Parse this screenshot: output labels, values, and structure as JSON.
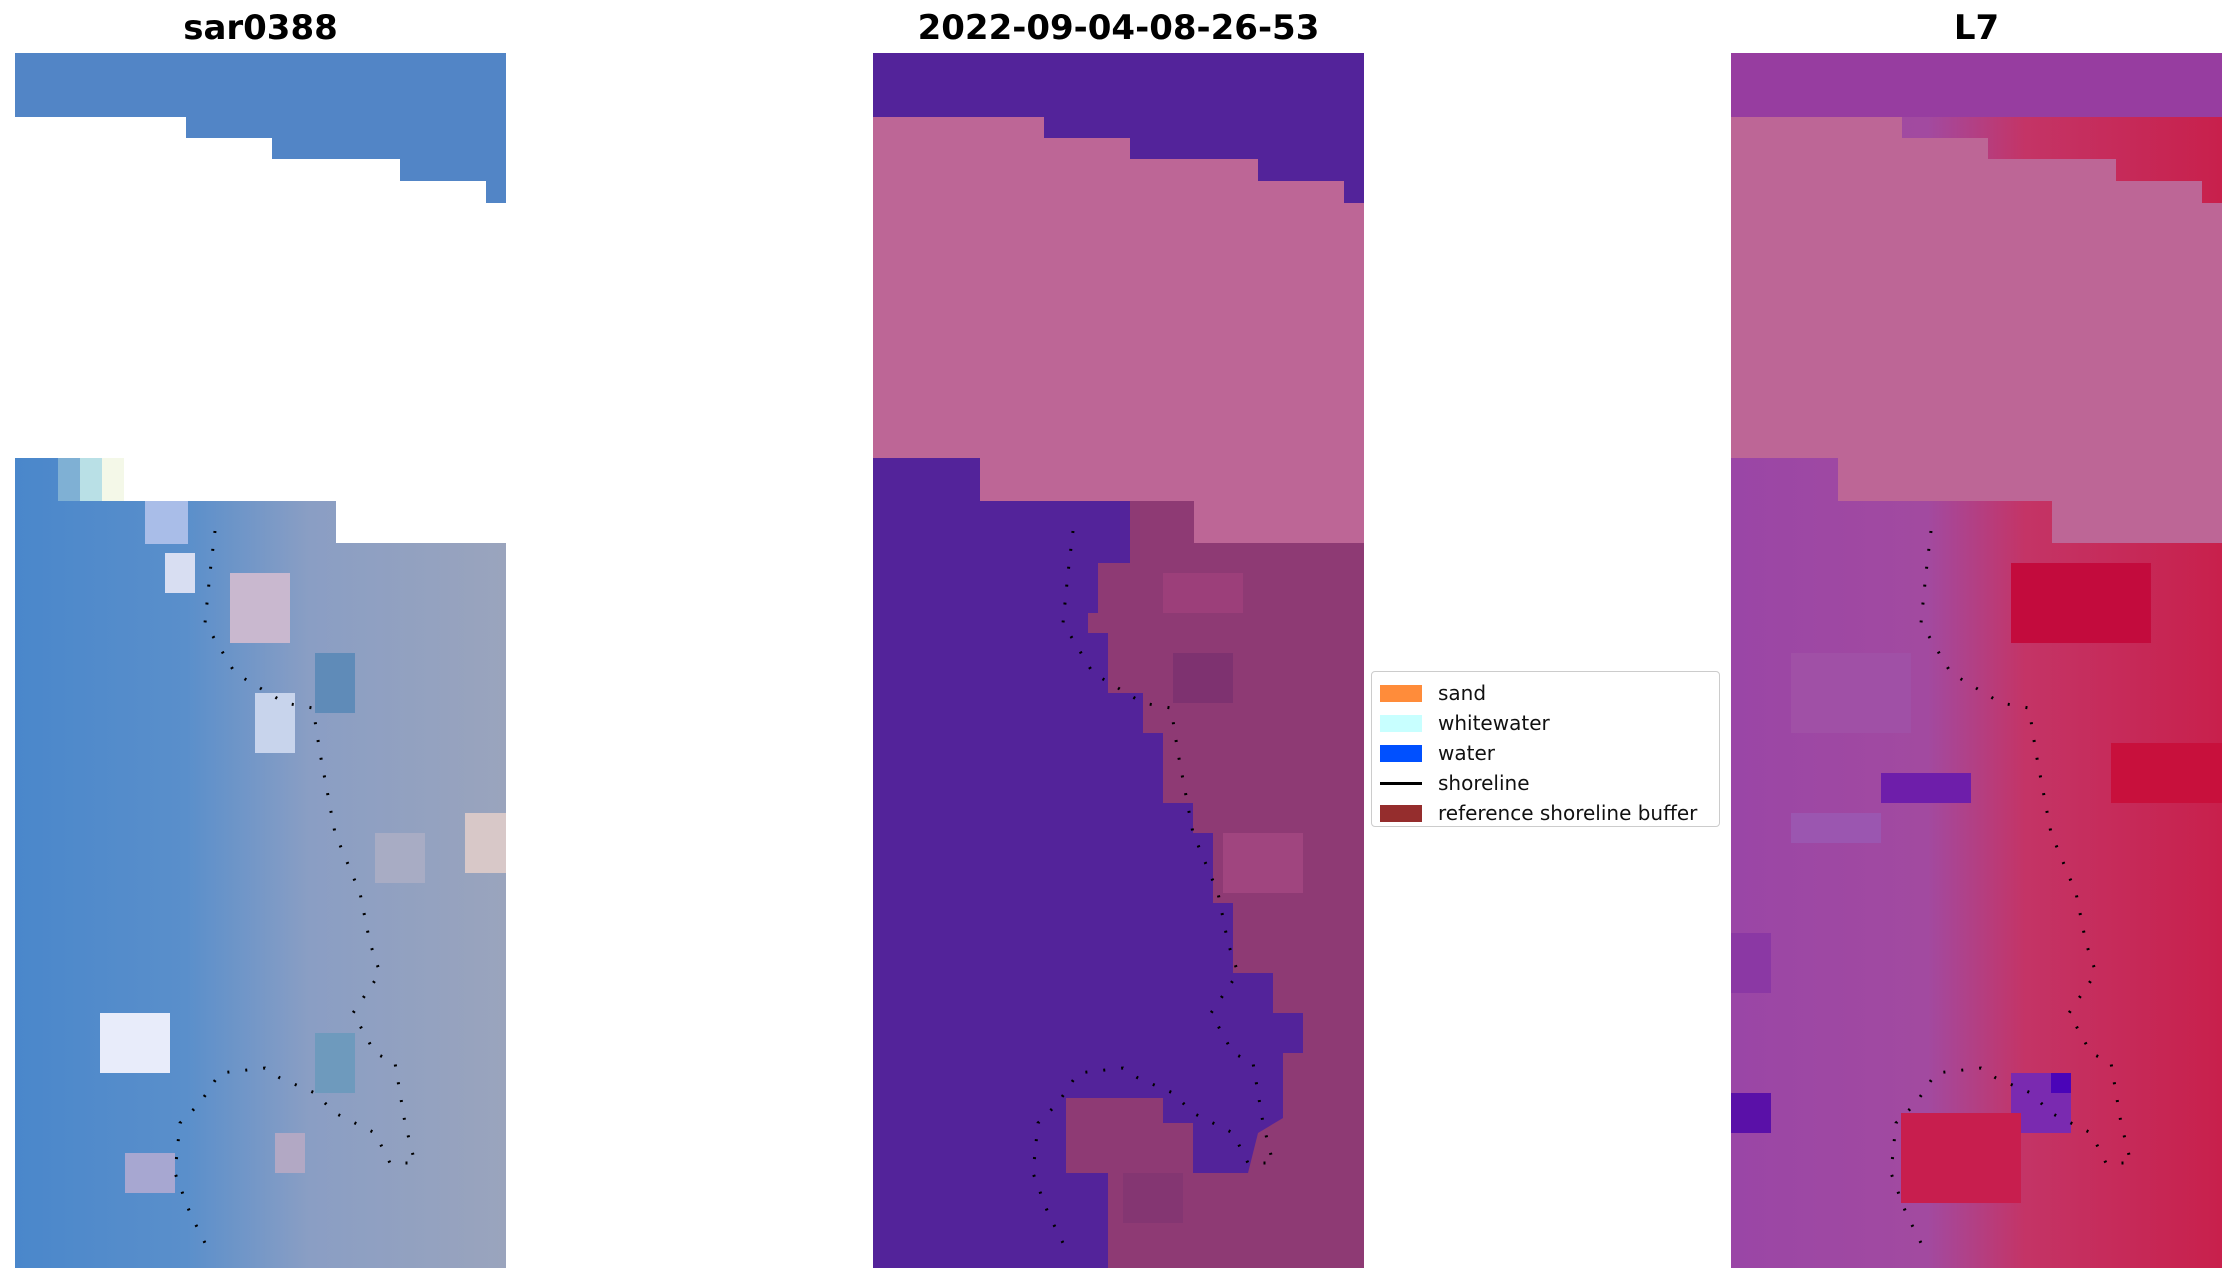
{
  "panels": [
    {
      "id": "rgb",
      "title": "sar0388"
    },
    {
      "id": "classified",
      "title": "2022-09-04-08-26-53"
    },
    {
      "id": "index",
      "title": "L7"
    }
  ],
  "legend": {
    "items": [
      {
        "label": "sand",
        "color": "#ff8c3a",
        "kind": "patch"
      },
      {
        "label": "whitewater",
        "color": "#c8ffff",
        "kind": "patch"
      },
      {
        "label": "water",
        "color": "#0050ff",
        "kind": "patch"
      },
      {
        "label": "shoreline",
        "color": "#000000",
        "kind": "line"
      },
      {
        "label": "reference shoreline buffer",
        "color": "#952d2d",
        "kind": "patch"
      }
    ]
  },
  "colors": {
    "nodata_pink": "#bd6696",
    "water_purple": "#53239a",
    "sand_mauve": "#8e3a74",
    "rgb_blue": "#4a85c9",
    "rgb_land": "#8e9bb8",
    "index_land": "#c2305a",
    "index_water": "#9a4aa8"
  }
}
